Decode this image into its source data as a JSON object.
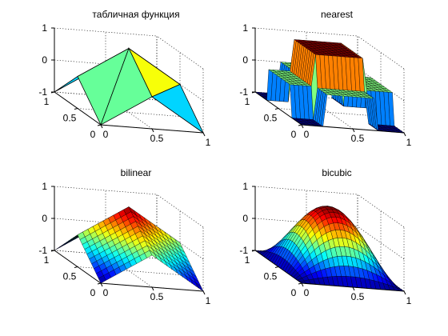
{
  "figure": {
    "background": "#ffffff"
  },
  "chart_data": [
    {
      "type": "surface",
      "title": "табличная функция",
      "render": "table-coarse",
      "x_ticks": [
        "0",
        "0.5",
        "1"
      ],
      "y_ticks": [
        "0",
        "0.5",
        "1"
      ],
      "z_ticks": [
        "-1",
        "0",
        "1"
      ],
      "xlim": [
        0,
        1
      ],
      "ylim": [
        0,
        1
      ],
      "zlim": [
        -1,
        1
      ],
      "grid": true,
      "colormap": "jet"
    },
    {
      "type": "surface",
      "title": "nearest",
      "render": "nearest",
      "x_ticks": [
        "0",
        "0.5",
        "1"
      ],
      "y_ticks": [
        "0",
        "0.5",
        "1"
      ],
      "z_ticks": [
        "-1",
        "0",
        "1"
      ],
      "xlim": [
        0,
        1
      ],
      "ylim": [
        0,
        1
      ],
      "zlim": [
        -1,
        1
      ],
      "grid": true,
      "colormap": "jet"
    },
    {
      "type": "surface",
      "title": "bilinear",
      "render": "bilinear",
      "x_ticks": [
        "0",
        "0.5",
        "1"
      ],
      "y_ticks": [
        "0",
        "0.5",
        "1"
      ],
      "z_ticks": [
        "-1",
        "0",
        "1"
      ],
      "xlim": [
        0,
        1
      ],
      "ylim": [
        0,
        1
      ],
      "zlim": [
        -1,
        1
      ],
      "grid": true,
      "colormap": "jet"
    },
    {
      "type": "surface",
      "title": "bicubic",
      "render": "bicubic",
      "x_ticks": [
        "0",
        "0.5",
        "1"
      ],
      "y_ticks": [
        "0",
        "0.5",
        "1"
      ],
      "z_ticks": [
        "-1",
        "0",
        "1"
      ],
      "xlim": [
        0,
        1
      ],
      "ylim": [
        0,
        1
      ],
      "zlim": [
        -1,
        1
      ],
      "grid": true,
      "colormap": "jet"
    }
  ]
}
